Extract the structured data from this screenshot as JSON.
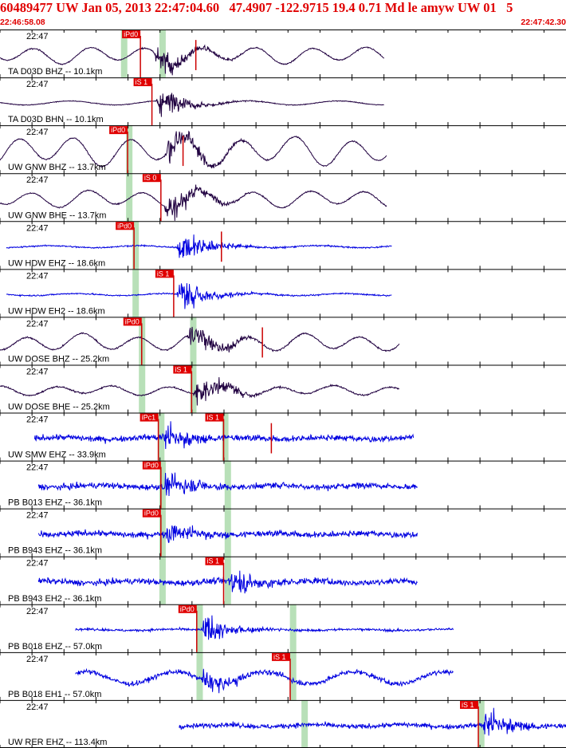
{
  "header": {
    "title": "60489477 UW Jan 05, 2013 22:47:04.60   47.4907 -122.9715 19.4 0.71 Md le amyw UW 01   5",
    "time_start": "22:46:58.08",
    "time_end": "22:47:42.30"
  },
  "colors": {
    "header_text": "#e00000",
    "pick_box": "#e00000",
    "pick_line": "#cc0000",
    "theoretical_band": "#b8e0b8",
    "trace_blue": "#0000e0",
    "trace_dark": "#200040",
    "grid": "#000000"
  },
  "chart_data": {
    "type": "line",
    "title": "60489477 UW Jan 05, 2013 22:47:04.60   47.4907 -122.9715 19.4 0.71 Md le amyw UW 01   5",
    "xlabel": "",
    "ylabel": "",
    "x_unit": "seconds since 22:46:58.08",
    "xlim": [
      0,
      44.22
    ],
    "time_start": "22:46:58.08",
    "time_end": "22:47:42.30",
    "grid": true,
    "legend": "none",
    "panels": [
      {
        "label": "TA D03D BHZ -- 10.1km",
        "time_label": "22:47",
        "color": "trace_dark",
        "seg": [
          0,
          30.0
        ],
        "amp": 0.35,
        "noise": 0.05,
        "onset": 12.0,
        "event_amp": 0.9,
        "longperiod": true,
        "picks": [
          {
            "label": "iPd0",
            "t": 9.6
          }
        ],
        "bands": [
          9.7,
          12.7
        ],
        "red_ticks": [
          15.3
        ]
      },
      {
        "label": "TA D03D BHN -- 10.1km",
        "time_label": "22:47",
        "color": "trace_dark",
        "seg": [
          0,
          30.0
        ],
        "amp": 0.1,
        "noise": 0.03,
        "onset": 12.2,
        "event_amp": 0.9,
        "longperiod": false,
        "picks": [
          {
            "label": "iS 1",
            "t": 10.5
          }
        ],
        "bands": [],
        "red_ticks": []
      },
      {
        "label": "UW GNW BHZ -- 13.7km",
        "time_label": "22:47",
        "color": "trace_dark",
        "seg": [
          0,
          30.2
        ],
        "amp": 0.6,
        "noise": 0.05,
        "onset": 12.8,
        "event_amp": 1.0,
        "longperiod": true,
        "picks": [
          {
            "label": "iPd0",
            "t": 8.6
          }
        ],
        "bands": [
          10.1
        ],
        "red_ticks": [
          14.3
        ]
      },
      {
        "label": "UW GNW BHE -- 13.7km",
        "time_label": "22:47",
        "color": "trace_dark",
        "seg": [
          0,
          30.2
        ],
        "amp": 0.35,
        "noise": 0.05,
        "onset": 12.8,
        "event_amp": 1.0,
        "longperiod": true,
        "picks": [
          {
            "label": "iS 0",
            "t": 11.2
          }
        ],
        "bands": [
          10.1
        ],
        "red_ticks": []
      },
      {
        "label": "UW HDW EHZ -- 18.6km",
        "time_label": "22:47",
        "color": "trace_blue",
        "seg": [
          0.5,
          30.6
        ],
        "amp": 0.05,
        "noise": 0.06,
        "onset": 13.8,
        "event_amp": 1.0,
        "longperiod": false,
        "picks": [
          {
            "label": "iPd0",
            "t": 9.1
          }
        ],
        "bands": [
          10.6
        ],
        "red_ticks": [
          17.3
        ]
      },
      {
        "label": "UW HDW EH2 -- 18.6km",
        "time_label": "22:47",
        "color": "trace_blue",
        "seg": [
          0.5,
          30.6
        ],
        "amp": 0.05,
        "noise": 0.06,
        "onset": 13.8,
        "event_amp": 1.0,
        "longperiod": false,
        "picks": [
          {
            "label": "iS 1",
            "t": 12.2
          }
        ],
        "bands": [
          10.6
        ],
        "red_ticks": []
      },
      {
        "label": "UW DOSE BHZ -- 25.2km",
        "time_label": "22:47",
        "color": "trace_dark",
        "seg": [
          0,
          31.2
        ],
        "amp": 0.35,
        "noise": 0.06,
        "onset": 14.5,
        "event_amp": 1.0,
        "longperiod": true,
        "picks": [
          {
            "label": "iPd0",
            "t": 9.7
          }
        ],
        "bands": [
          11.1,
          15.1
        ],
        "red_ticks": [
          20.5
        ]
      },
      {
        "label": "UW DOSE BHE -- 25.2km",
        "time_label": "22:47",
        "color": "trace_dark",
        "seg": [
          0,
          31.2
        ],
        "amp": 0.2,
        "noise": 0.06,
        "onset": 15.1,
        "event_amp": 1.0,
        "longperiod": true,
        "picks": [
          {
            "label": "iS 1",
            "t": 13.6
          }
        ],
        "bands": [
          11.1,
          15.1
        ],
        "red_ticks": []
      },
      {
        "label": "UW SMW EHZ -- 33.9km",
        "time_label": "22:47",
        "color": "trace_blue",
        "seg": [
          2.7,
          32.3
        ],
        "amp": 0.05,
        "noise": 0.25,
        "onset": 12.6,
        "event_amp": 0.9,
        "longperiod": false,
        "picks": [
          {
            "label": "iPc1",
            "t": 11.0
          },
          {
            "label": "iS 1",
            "t": 16.1
          }
        ],
        "bands": [
          12.6,
          17.6
        ],
        "red_ticks": [
          21.2
        ]
      },
      {
        "label": "PB B013 EHZ -- 36.1km",
        "time_label": "22:47",
        "color": "trace_blue",
        "seg": [
          3.0,
          32.6
        ],
        "amp": 0.05,
        "noise": 0.25,
        "onset": 12.7,
        "event_amp": 0.9,
        "longperiod": false,
        "picks": [
          {
            "label": "iPd0",
            "t": 11.2
          }
        ],
        "bands": [
          12.7,
          17.8
        ],
        "red_ticks": []
      },
      {
        "label": "PB B943 EHZ -- 36.1km",
        "time_label": "22:47",
        "color": "trace_blue",
        "seg": [
          3.0,
          32.6
        ],
        "amp": 0.05,
        "noise": 0.25,
        "onset": 12.7,
        "event_amp": 0.9,
        "longperiod": false,
        "picks": [
          {
            "label": "iPd0",
            "t": 11.2
          }
        ],
        "bands": [
          12.7,
          17.8
        ],
        "red_ticks": []
      },
      {
        "label": "PB B943 EH2 -- 36.1km",
        "time_label": "22:47",
        "color": "trace_blue",
        "seg": [
          3.0,
          32.6
        ],
        "amp": 0.05,
        "noise": 0.25,
        "onset": 17.8,
        "event_amp": 1.0,
        "longperiod": false,
        "picks": [
          {
            "label": "iS 1",
            "t": 16.1
          }
        ],
        "bands": [
          12.7,
          17.8
        ],
        "red_ticks": []
      },
      {
        "label": "PB B018 EHZ -- 57.0km",
        "time_label": "22:47",
        "color": "trace_blue",
        "seg": [
          5.9,
          35.4
        ],
        "amp": 0.03,
        "noise": 0.1,
        "onset": 15.7,
        "event_amp": 0.9,
        "longperiod": false,
        "picks": [
          {
            "label": "iPd0",
            "t": 14.0
          }
        ],
        "bands": [
          15.6,
          22.9
        ],
        "red_ticks": []
      },
      {
        "label": "PB B018 EH1 -- 57.0km",
        "time_label": "22:47",
        "color": "trace_blue",
        "seg": [
          5.9,
          35.4
        ],
        "amp": 0.3,
        "noise": 0.2,
        "onset": 15.7,
        "event_amp": 0.8,
        "longperiod": false,
        "picks": [
          {
            "label": "iS 1",
            "t": 21.3
          }
        ],
        "bands": [
          15.6,
          22.9
        ],
        "red_ticks": []
      },
      {
        "label": "UW RER EHZ -- 113.4km",
        "time_label": "22:47",
        "color": "trace_blue",
        "seg": [
          14.0,
          44.22
        ],
        "amp": 0.05,
        "noise": 0.2,
        "onset": 37.6,
        "event_amp": 1.0,
        "longperiod": false,
        "picks": [
          {
            "label": "iS 1",
            "t": 36.0
          }
        ],
        "bands": [
          23.8,
          37.6
        ],
        "red_ticks": []
      }
    ]
  }
}
